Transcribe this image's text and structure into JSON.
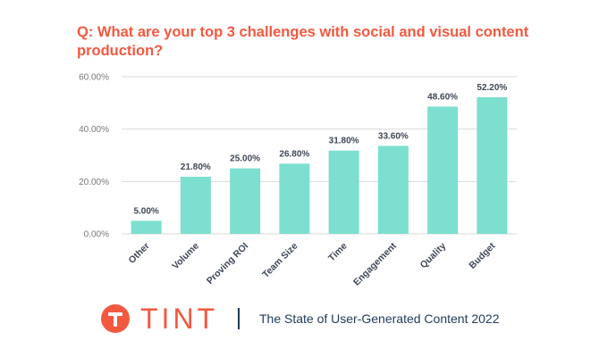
{
  "title": "Q: What are your top 3 challenges with social and visual content production?",
  "footer": {
    "logo_text": "TINT",
    "report_title": "The State of User-Generated Content 2022"
  },
  "colors": {
    "bar": "#7ddfcf",
    "title": "#f2593f",
    "brand": "#f2593f",
    "footer_text": "#1d3a5c"
  },
  "chart_data": {
    "type": "bar",
    "categories": [
      "Other",
      "Volume",
      "Proving ROI",
      "Team Size",
      "Time",
      "Engagement",
      "Quality",
      "Budget"
    ],
    "values": [
      5.0,
      21.8,
      25.0,
      26.8,
      31.8,
      33.6,
      48.6,
      52.2
    ],
    "data_labels": [
      "5.00%",
      "21.80%",
      "25.00%",
      "26.80%",
      "31.80%",
      "33.60%",
      "48.60%",
      "52.20%"
    ],
    "y_ticks": [
      0,
      20,
      40,
      60
    ],
    "y_tick_labels": [
      "0.00%",
      "20.00%",
      "40.00%",
      "60.00%"
    ],
    "ylim": [
      0,
      60
    ],
    "grid": true,
    "xlabel": "",
    "ylabel": ""
  }
}
